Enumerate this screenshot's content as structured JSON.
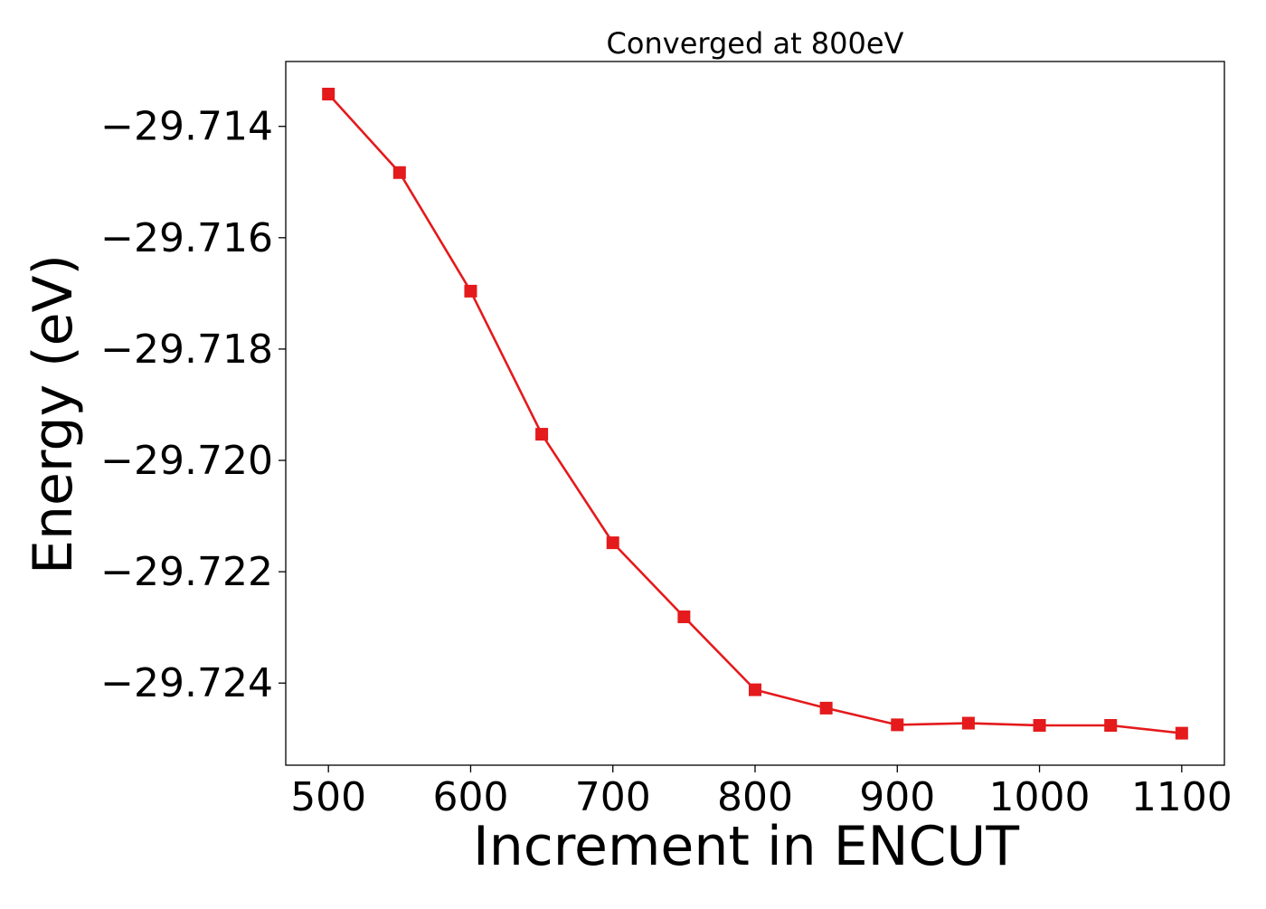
{
  "chart_data": {
    "type": "line",
    "title": "Converged at 800eV",
    "xlabel": "Increment in ENCUT",
    "ylabel": "Energy (eV)",
    "x": [
      500,
      550,
      600,
      650,
      700,
      750,
      800,
      850,
      900,
      950,
      1000,
      1050,
      1100
    ],
    "series": [
      {
        "color": "#e41a1c",
        "marker": "square",
        "values": [
          -29.71342,
          -29.71483,
          -29.71696,
          -29.71953,
          -29.72148,
          -29.72281,
          -29.72412,
          -29.72445,
          -29.72475,
          -29.72472,
          -29.72476,
          -29.72476,
          -29.7249
        ]
      }
    ],
    "xlim": [
      470,
      1130
    ],
    "ylim": [
      -29.725475,
      -29.712835
    ],
    "xticks": [
      500,
      600,
      700,
      800,
      900,
      1000,
      1100
    ],
    "xtick_labels": [
      "500",
      "600",
      "700",
      "800",
      "900",
      "1000",
      "1100"
    ],
    "yticks": [
      -29.714,
      -29.716,
      -29.718,
      -29.72,
      -29.722,
      -29.724
    ],
    "ytick_labels": [
      "−29.714",
      "−29.716",
      "−29.718",
      "−29.720",
      "−29.722",
      "−29.724"
    ],
    "grid": false,
    "legend": "none"
  }
}
